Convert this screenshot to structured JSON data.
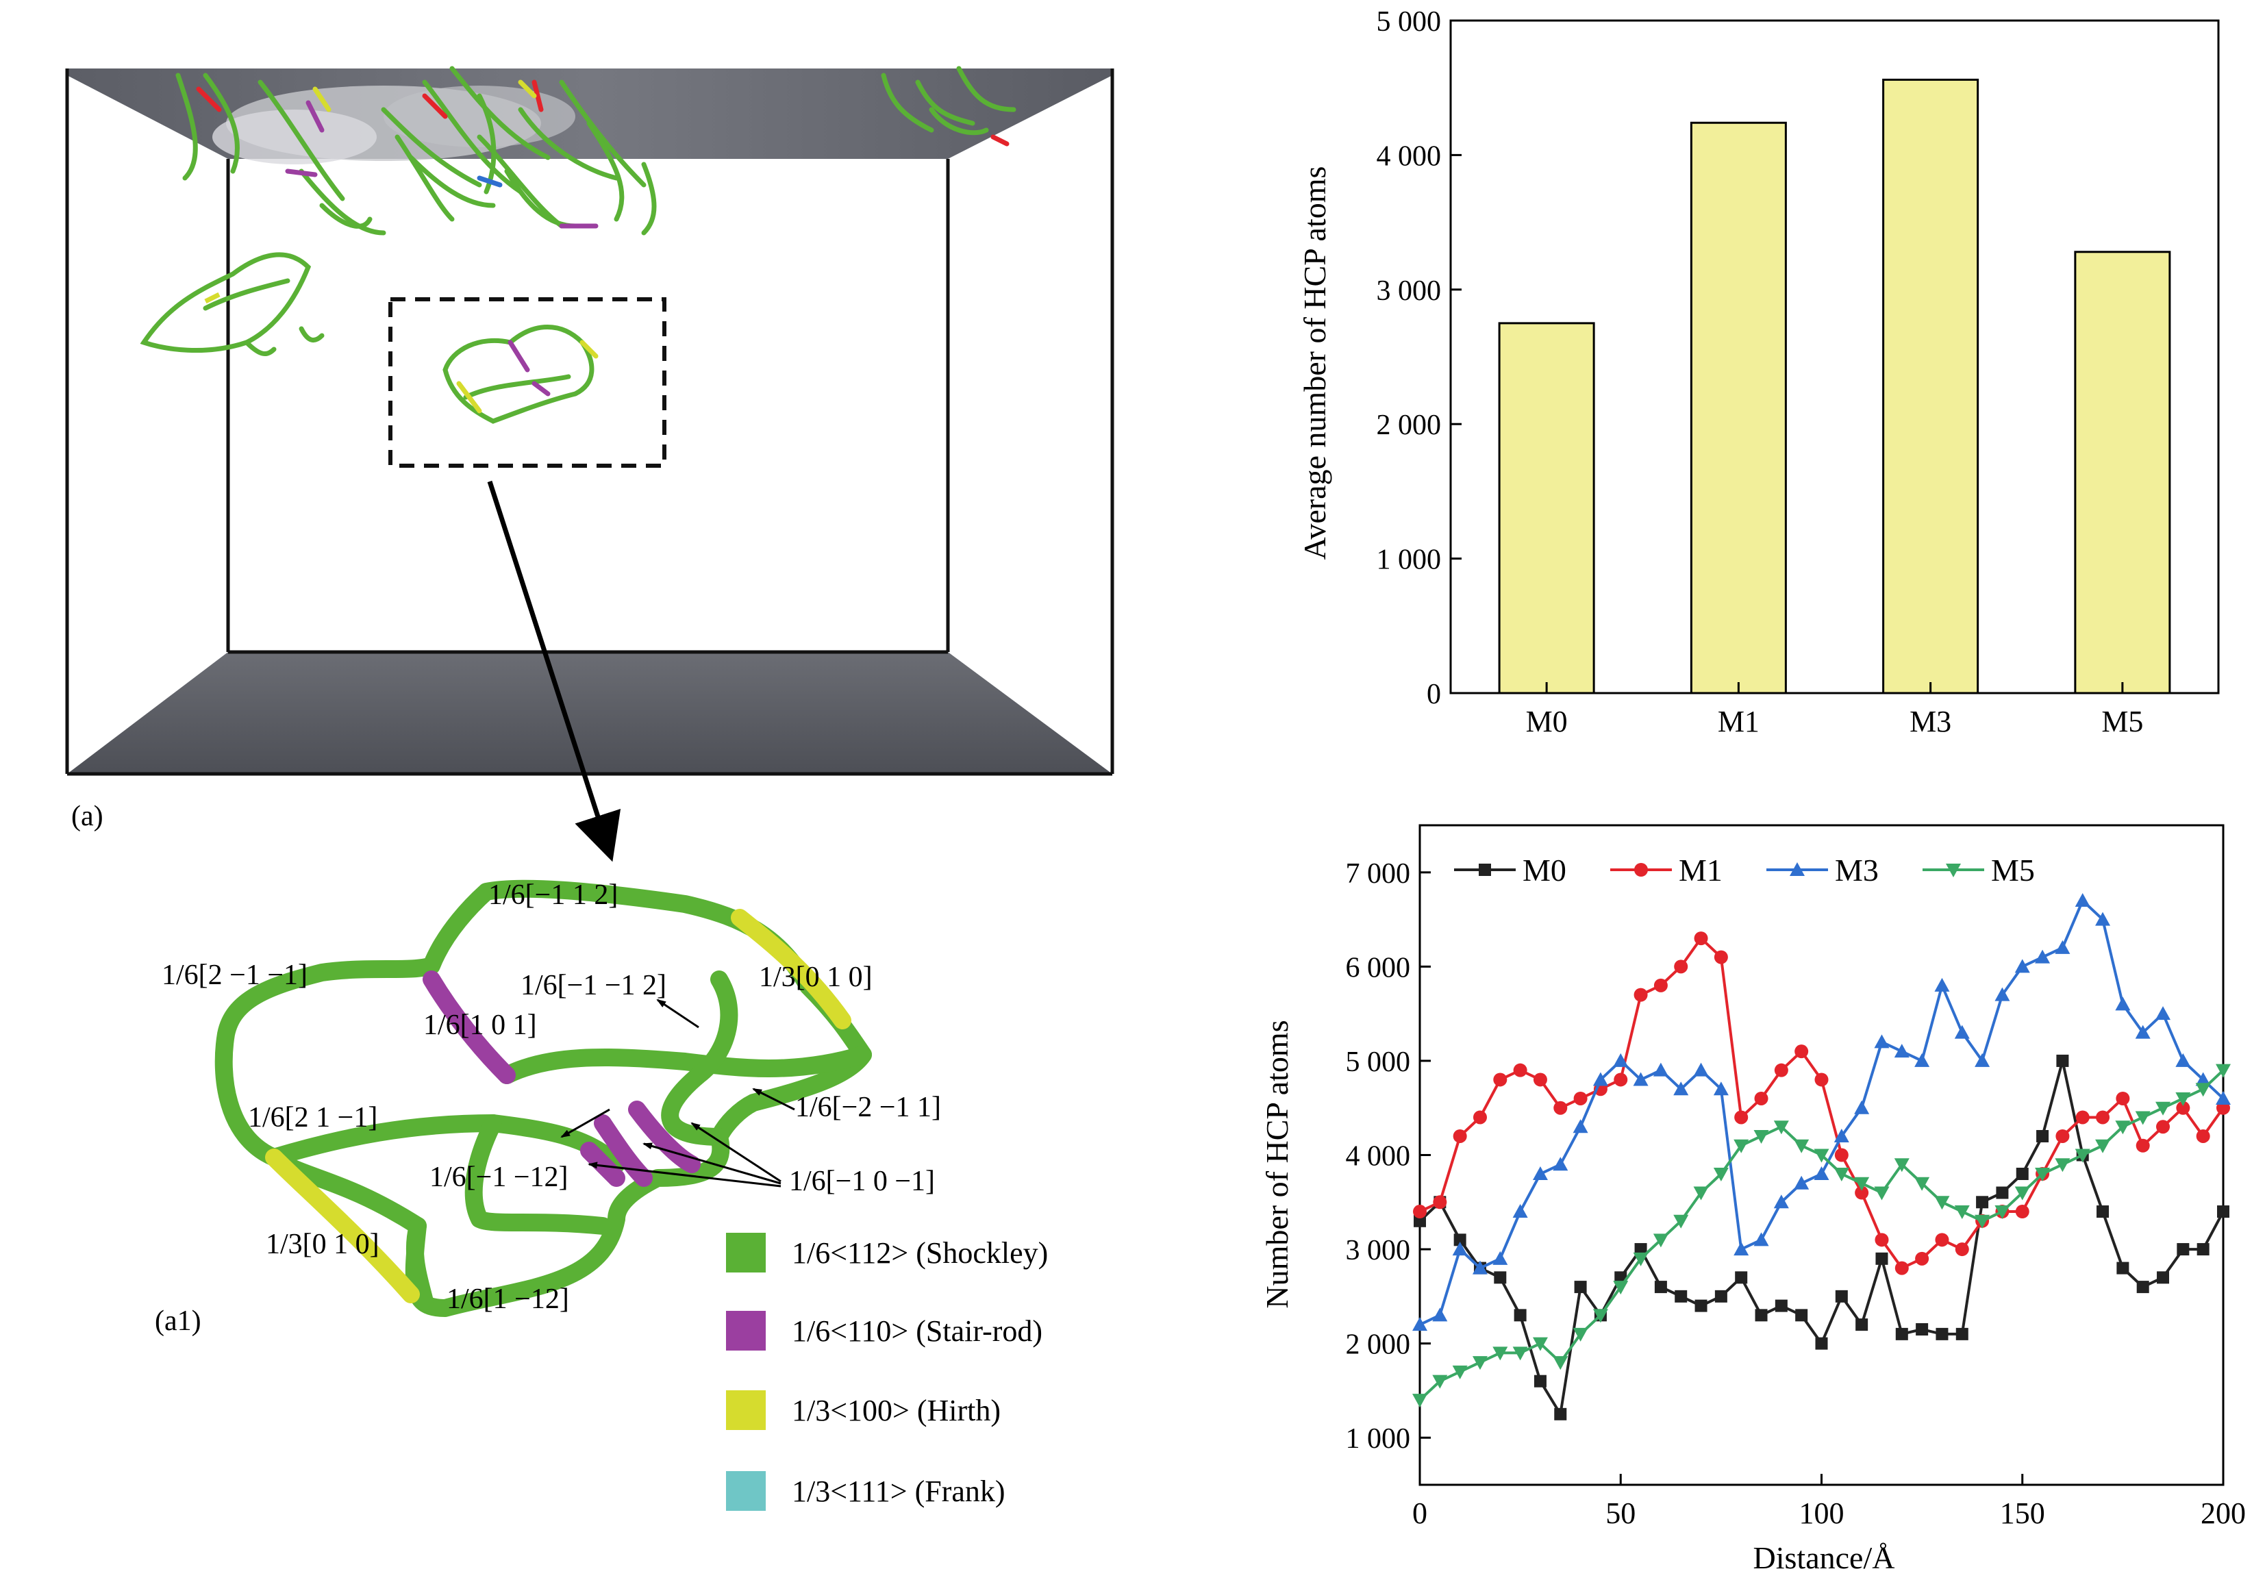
{
  "panel_labels": {
    "a": "(a)",
    "a1": "(a1)"
  },
  "colors": {
    "shockley": "#5ab135",
    "stair_rod": "#9b3fa0",
    "hirth": "#d6dc2e",
    "frank": "#6fc6c6",
    "bar_fill": "#f2ef9a",
    "m0": "#222222",
    "m1": "#e3242b",
    "m3": "#2f6fcf",
    "m5": "#3aa864"
  },
  "burgers_labels": [
    "1/6[−1 1 2]",
    "1/6[2 −1 −1]",
    "1/6[−1 −1 2]",
    "1/3[0 1 0]",
    "1/6[1 0 1]",
    "1/6[2 1 −1]",
    "1/6[−2 −1 1]",
    "1/6[−1 −12]",
    "1/6[−1 0 −1]",
    "1/3[0 1 0]",
    "1/6[1 −12]"
  ],
  "legend": [
    {
      "label": "1/6<112> (Shockley)",
      "color": "#5ab135"
    },
    {
      "label": "1/6<110> (Stair-rod)",
      "color": "#9b3fa0"
    },
    {
      "label": "1/3<100> (Hirth)",
      "color": "#d6dc2e"
    },
    {
      "label": "1/3<111> (Frank)",
      "color": "#6fc6c6"
    }
  ],
  "chart_data": [
    {
      "type": "bar",
      "categories": [
        "M0",
        "M1",
        "M3",
        "M5"
      ],
      "values": [
        2750,
        4240,
        4560,
        3280
      ],
      "ylabel": "Average number of HCP atoms",
      "xlabel": "",
      "ylim": [
        0,
        5000
      ],
      "yticks": [
        0,
        1000,
        2000,
        3000,
        4000,
        5000
      ],
      "ytick_labels": [
        "0",
        "1 000",
        "2 000",
        "3 000",
        "4 000",
        "5 000"
      ],
      "grid": false
    },
    {
      "type": "line",
      "xlabel": "Distance/Å",
      "ylabel": "Number of HCP atoms",
      "xlim": [
        0,
        200
      ],
      "ylim": [
        500,
        7500
      ],
      "xticks": [
        0,
        50,
        100,
        150,
        200
      ],
      "xtick_labels": [
        "0",
        "50",
        "100",
        "150",
        "200"
      ],
      "yticks": [
        1000,
        2000,
        3000,
        4000,
        5000,
        6000,
        7000
      ],
      "ytick_labels": [
        "1 000",
        "2 000",
        "3 000",
        "4 000",
        "5 000",
        "6 000",
        "7 000"
      ],
      "legend_position": "top-left",
      "grid": false,
      "x": [
        0,
        5,
        10,
        15,
        20,
        25,
        30,
        35,
        40,
        45,
        50,
        55,
        60,
        65,
        70,
        75,
        80,
        85,
        90,
        95,
        100,
        105,
        110,
        115,
        120,
        125,
        130,
        135,
        140,
        145,
        150,
        155,
        160,
        165,
        170,
        175,
        180,
        185,
        190,
        195,
        200
      ],
      "series": [
        {
          "name": "M0",
          "marker": "square",
          "values": [
            3300,
            3500,
            3100,
            2800,
            2700,
            2300,
            1600,
            1250,
            2600,
            2300,
            2700,
            3000,
            2600,
            2500,
            2400,
            2500,
            2700,
            2300,
            2400,
            2300,
            2000,
            2500,
            2200,
            2900,
            2100,
            2150,
            2100,
            2100,
            3500,
            3600,
            3800,
            4200,
            5000,
            4000,
            3400,
            2800,
            2600,
            2700,
            3000,
            3000,
            3400
          ]
        },
        {
          "name": "M1",
          "marker": "circle",
          "values": [
            3400,
            3500,
            4200,
            4400,
            4800,
            4900,
            4800,
            4500,
            4600,
            4700,
            4800,
            5700,
            5800,
            6000,
            6300,
            6100,
            4400,
            4600,
            4900,
            5100,
            4800,
            4000,
            3600,
            3100,
            2800,
            2900,
            3100,
            3000,
            3300,
            3400,
            3400,
            3800,
            4200,
            4400,
            4400,
            4600,
            4100,
            4300,
            4500,
            4200,
            4500
          ]
        },
        {
          "name": "M3",
          "marker": "triangle-up",
          "values": [
            2200,
            2300,
            3000,
            2800,
            2900,
            3400,
            3800,
            3900,
            4300,
            4800,
            5000,
            4800,
            4900,
            4700,
            4900,
            4700,
            3000,
            3100,
            3500,
            3700,
            3800,
            4200,
            4500,
            5200,
            5100,
            5000,
            5800,
            5300,
            5000,
            5700,
            6000,
            6100,
            6200,
            6700,
            6500,
            5600,
            5300,
            5500,
            5000,
            4800,
            4600
          ]
        },
        {
          "name": "M5",
          "marker": "triangle-down",
          "values": [
            1400,
            1600,
            1700,
            1800,
            1900,
            1900,
            2000,
            1800,
            2100,
            2300,
            2600,
            2900,
            3100,
            3300,
            3600,
            3800,
            4100,
            4200,
            4300,
            4100,
            4000,
            3800,
            3700,
            3600,
            3900,
            3700,
            3500,
            3400,
            3300,
            3400,
            3600,
            3800,
            3900,
            4000,
            4100,
            4300,
            4400,
            4500,
            4600,
            4700,
            4900
          ]
        }
      ]
    }
  ]
}
